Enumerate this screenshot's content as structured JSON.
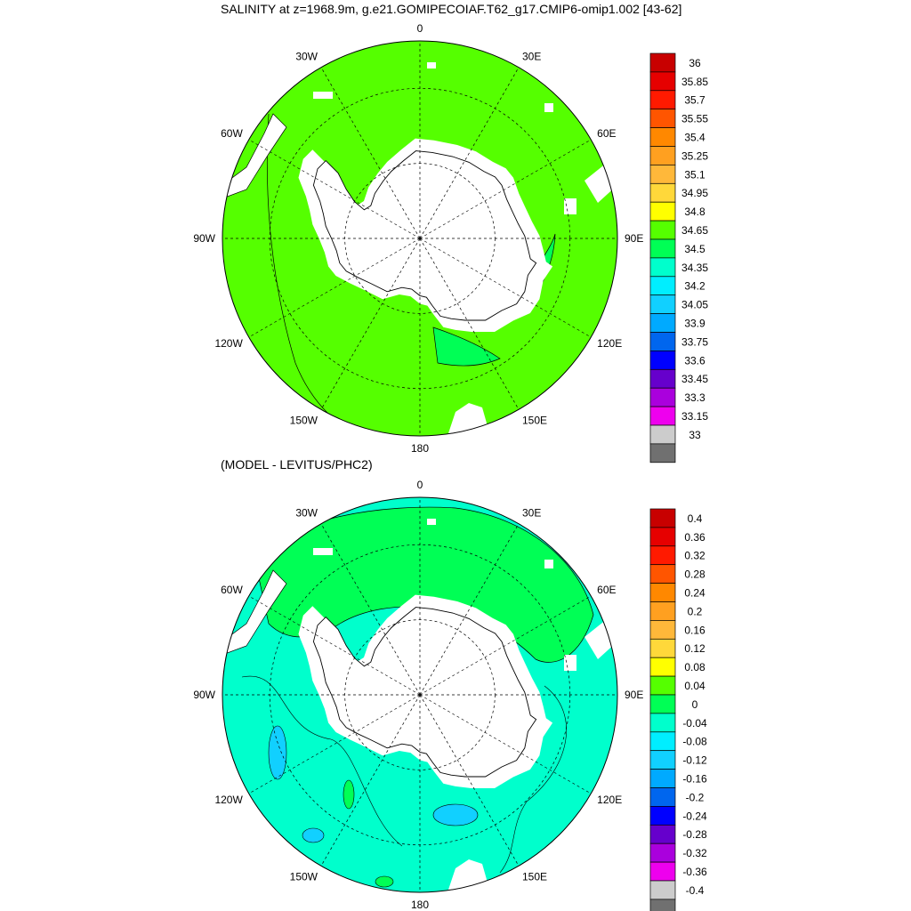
{
  "chart_data": [
    {
      "type": "heatmap",
      "projection": "south-polar stereographic",
      "title": "SALINITY at z=1968.9m, g.e21.GOMIPECOIAF.T62_g17.CMIP6-omip1.002 [43-62]",
      "longitude_labels": [
        "0",
        "30E",
        "60E",
        "90E",
        "120E",
        "150E",
        "180",
        "150W",
        "120W",
        "90W",
        "60W",
        "30W"
      ],
      "grid": true,
      "land_color": "#ffffff",
      "dominant_value_range": [
        34.65,
        34.8
      ],
      "secondary_value_range": [
        34.5,
        34.65
      ],
      "colorbar": {
        "levels": [
          "36",
          "35.85",
          "35.7",
          "35.55",
          "35.4",
          "35.25",
          "35.1",
          "34.95",
          "34.8",
          "34.65",
          "34.5",
          "34.35",
          "34.2",
          "34.05",
          "33.9",
          "33.75",
          "33.6",
          "33.45",
          "33.3",
          "33.15",
          "33"
        ],
        "colors": [
          "#c80000",
          "#e60000",
          "#ff1a00",
          "#ff5500",
          "#ff8800",
          "#ffa020",
          "#ffb83a",
          "#ffd83a",
          "#ffff00",
          "#55ff00",
          "#00ff55",
          "#00ffcc",
          "#00eeff",
          "#11d0ff",
          "#00aaff",
          "#0066ee",
          "#0000ff",
          "#6600cc",
          "#aa00dd",
          "#ee00ee",
          "#cccccc",
          "#707070"
        ]
      }
    },
    {
      "type": "heatmap",
      "projection": "south-polar stereographic",
      "title": "(MODEL - LEVITUS/PHC2)",
      "longitude_labels": [
        "0",
        "30E",
        "60E",
        "90E",
        "120E",
        "150E",
        "180",
        "150W",
        "120W",
        "90W",
        "60W",
        "30W"
      ],
      "grid": true,
      "land_color": "#ffffff",
      "dominant_value_range": [
        -0.04,
        0.0
      ],
      "secondary_value_range": [
        0.0,
        0.04
      ],
      "colorbar": {
        "levels": [
          "0.4",
          "0.36",
          "0.32",
          "0.28",
          "0.24",
          "0.2",
          "0.16",
          "0.12",
          "0.08",
          "0.04",
          "0",
          "-0.04",
          "-0.08",
          "-0.12",
          "-0.16",
          "-0.2",
          "-0.24",
          "-0.28",
          "-0.32",
          "-0.36",
          "-0.4"
        ],
        "colors": [
          "#c80000",
          "#e60000",
          "#ff1a00",
          "#ff5500",
          "#ff8800",
          "#ffa020",
          "#ffb83a",
          "#ffd83a",
          "#ffff00",
          "#55ff00",
          "#00ff55",
          "#00ffcc",
          "#00eeff",
          "#11d0ff",
          "#00aaff",
          "#0066ee",
          "#0000ff",
          "#6600cc",
          "#aa00dd",
          "#ee00ee",
          "#cccccc",
          "#707070"
        ]
      }
    }
  ]
}
